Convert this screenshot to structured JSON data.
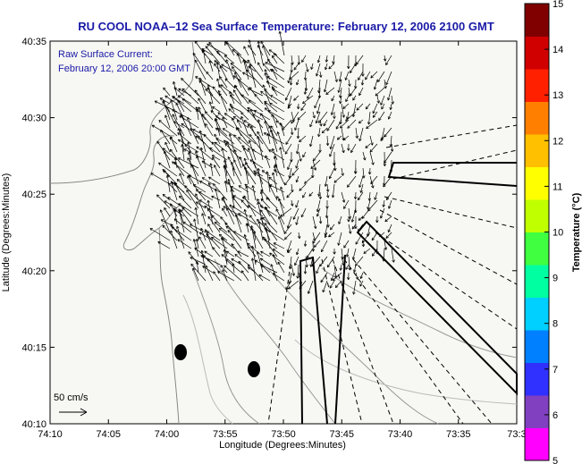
{
  "title": "RU COOL  NOAA–12  Sea Surface Temperature:  February 12, 2006 2100 GMT",
  "overlay": {
    "line1": "Raw Surface Current:",
    "line2": "February 12, 2006 20:00 GMT"
  },
  "scale_label": "50 cm/s",
  "axes": {
    "xlabel": "Longitude (Degrees:Minutes)",
    "ylabel": "Latitude (Degrees:Minutes)",
    "xticks": [
      "74:10",
      "74:05",
      "74:00",
      "73:55",
      "73:50",
      "73:45",
      "73:40",
      "73:35",
      "73:3"
    ],
    "yticks": [
      "40:35",
      "40:30",
      "40:25",
      "40:20",
      "40:15",
      "40:10"
    ]
  },
  "colorbar": {
    "label": "Temperature (°C)",
    "min": 5,
    "max": 15,
    "ticks": [
      "15",
      "14",
      "13",
      "12",
      "11",
      "10",
      "9",
      "8",
      "7",
      "6",
      "5"
    ],
    "colors": [
      "#ff00ff",
      "#8040c0",
      "#3030ff",
      "#0080ff",
      "#00d0ff",
      "#00ffa0",
      "#40ff40",
      "#c0ff00",
      "#ffff00",
      "#ffc000",
      "#ff8000",
      "#ff2000",
      "#d00000",
      "#800000"
    ]
  },
  "colors": {
    "title": "#1a1aa8",
    "land": "#ffffff",
    "ocean": "#f8f8f5"
  }
}
